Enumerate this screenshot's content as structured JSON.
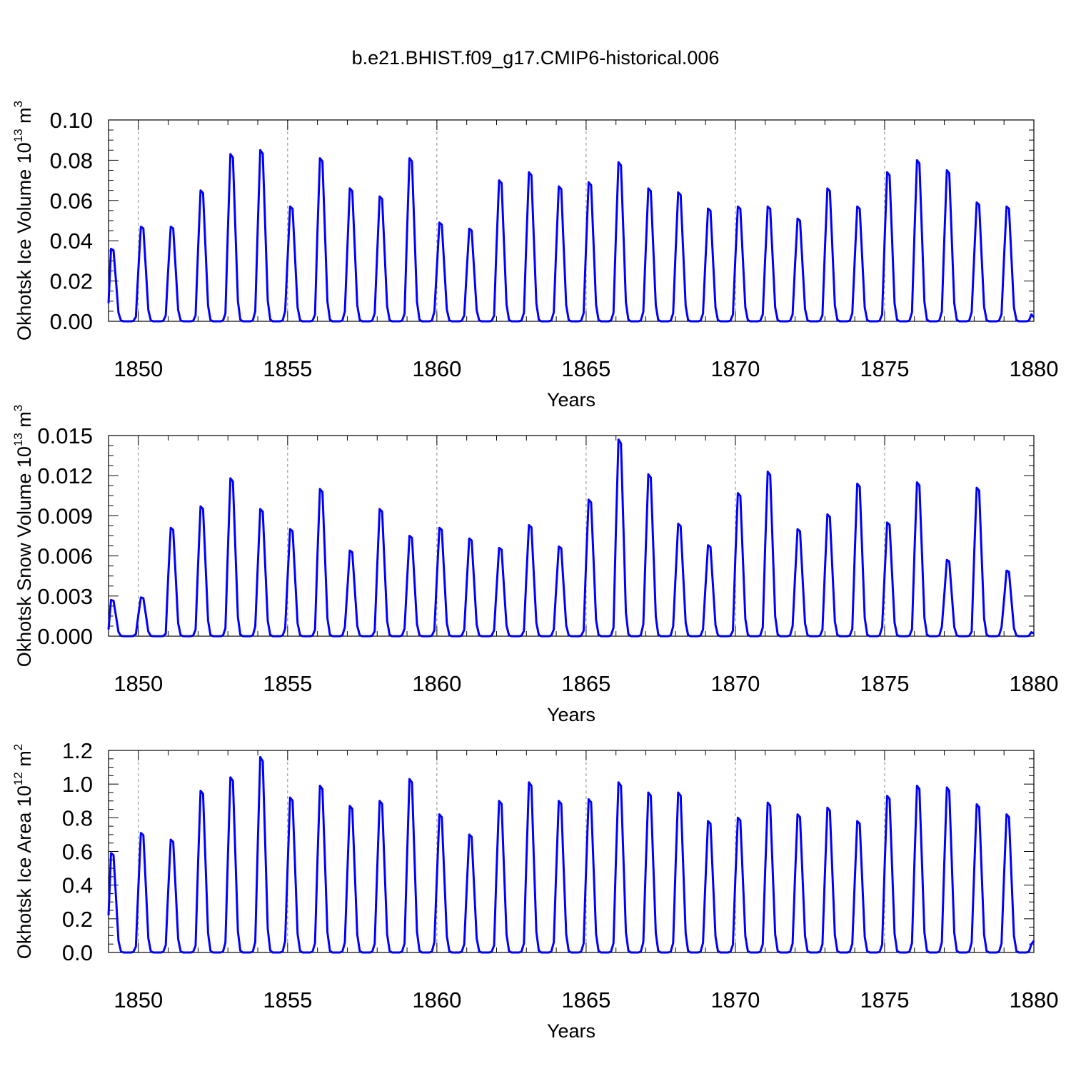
{
  "figure": {
    "title": "b.e21.BHIST.f09_g17.CMIP6-historical.006",
    "line_color": "#0000ff",
    "grid_color": "#888888"
  },
  "chart_data": [
    {
      "type": "line",
      "id": "ice-volume",
      "ylabel_main": "Okhotsk Ice Volume 10",
      "ylabel_exp": "13",
      "ylabel_unit": "m",
      "ylabel_unit_exp": "3",
      "xlabel": "Years",
      "xlim": [
        1849,
        1880
      ],
      "ylim": [
        0,
        0.1
      ],
      "xticks": [
        1850,
        1855,
        1860,
        1865,
        1870,
        1875,
        1880
      ],
      "xtick_labels": [
        "1850",
        "1855",
        "1860",
        "1865",
        "1870",
        "1875",
        "1880"
      ],
      "yticks": [
        0,
        0.02,
        0.04,
        0.06,
        0.08,
        0.1
      ],
      "ytick_labels": [
        "0.00",
        "0.02",
        "0.04",
        "0.06",
        "0.08",
        "0.10"
      ],
      "start_year": 1849,
      "first_value": 0.009,
      "last_value": 0.002,
      "annual_peaks": [
        0.036,
        0.047,
        0.047,
        0.065,
        0.083,
        0.085,
        0.057,
        0.081,
        0.066,
        0.062,
        0.081,
        0.049,
        0.046,
        0.07,
        0.074,
        0.067,
        0.069,
        0.079,
        0.066,
        0.064,
        0.056,
        0.057,
        0.057,
        0.051,
        0.066,
        0.057,
        0.074,
        0.08,
        0.075,
        0.059,
        0.057
      ]
    },
    {
      "type": "line",
      "id": "snow-volume",
      "ylabel_main": "Okhotsk Snow Volume 10",
      "ylabel_exp": "13",
      "ylabel_unit": "m",
      "ylabel_unit_exp": "3",
      "xlabel": "Years",
      "xlim": [
        1849,
        1880
      ],
      "ylim": [
        0,
        0.015
      ],
      "xticks": [
        1850,
        1855,
        1860,
        1865,
        1870,
        1875,
        1880
      ],
      "xtick_labels": [
        "1850",
        "1855",
        "1860",
        "1865",
        "1870",
        "1875",
        "1880"
      ],
      "yticks": [
        0,
        0.003,
        0.006,
        0.009,
        0.012,
        0.015
      ],
      "ytick_labels": [
        "0.000",
        "0.003",
        "0.006",
        "0.009",
        "0.012",
        "0.015"
      ],
      "start_year": 1849,
      "first_value": 0.0005,
      "last_value": 0.0002,
      "annual_peaks": [
        0.0027,
        0.0029,
        0.0081,
        0.0097,
        0.0118,
        0.0095,
        0.008,
        0.011,
        0.0064,
        0.0095,
        0.0075,
        0.0081,
        0.0073,
        0.0066,
        0.0083,
        0.0067,
        0.0102,
        0.0147,
        0.0121,
        0.0084,
        0.0068,
        0.0107,
        0.0123,
        0.008,
        0.0091,
        0.0114,
        0.0085,
        0.0115,
        0.0057,
        0.0111,
        0.0049
      ]
    },
    {
      "type": "line",
      "id": "ice-area",
      "ylabel_main": "Okhotsk Ice Area 10",
      "ylabel_exp": "12",
      "ylabel_unit": "m",
      "ylabel_unit_exp": "2",
      "xlabel": "Years",
      "xlim": [
        1849,
        1880
      ],
      "ylim": [
        0,
        1.2
      ],
      "xticks": [
        1850,
        1855,
        1860,
        1865,
        1870,
        1875,
        1880
      ],
      "xtick_labels": [
        "1850",
        "1855",
        "1860",
        "1865",
        "1870",
        "1875",
        "1880"
      ],
      "yticks": [
        0,
        0.2,
        0.4,
        0.6,
        0.8,
        1.0,
        1.2
      ],
      "ytick_labels": [
        "0.0",
        "0.2",
        "0.4",
        "0.6",
        "0.8",
        "1.0",
        "1.2"
      ],
      "start_year": 1849,
      "first_value": 0.22,
      "last_value": 0.07,
      "annual_peaks": [
        0.59,
        0.71,
        0.67,
        0.96,
        1.04,
        1.16,
        0.92,
        0.99,
        0.87,
        0.9,
        1.03,
        0.82,
        0.7,
        0.9,
        1.01,
        0.9,
        0.91,
        1.01,
        0.95,
        0.95,
        0.78,
        0.8,
        0.89,
        0.82,
        0.86,
        0.78,
        0.93,
        0.99,
        0.98,
        0.88,
        0.82
      ]
    }
  ]
}
